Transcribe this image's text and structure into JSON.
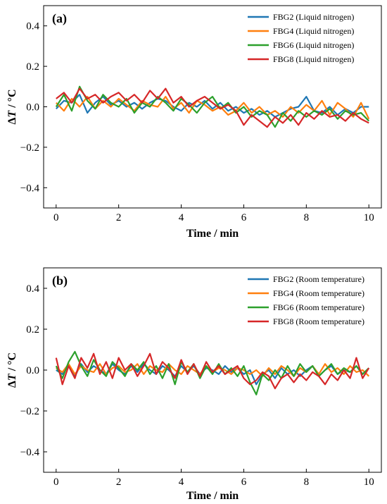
{
  "chart_data": [
    {
      "type": "line",
      "panel_label": "(a)",
      "xlabel": "Time / min",
      "ylabel_delta": "Δ",
      "ylabel_var": "T",
      "ylabel_unit": " / °C",
      "xlim": [
        -0.4,
        10.4
      ],
      "ylim": [
        -0.5,
        0.5
      ],
      "xticks": [
        "0",
        "2",
        "4",
        "6",
        "8",
        "10"
      ],
      "yticks": [
        "0.4",
        "0.2",
        "0.0",
        "−0.2",
        "−0.4"
      ],
      "grid": false,
      "legend_position": "top-right",
      "x": [
        0,
        0.25,
        0.5,
        0.75,
        1,
        1.25,
        1.5,
        1.75,
        2,
        2.25,
        2.5,
        2.75,
        3,
        3.25,
        3.5,
        3.75,
        4,
        4.25,
        4.5,
        4.75,
        5,
        5.25,
        5.5,
        5.75,
        6,
        6.25,
        6.5,
        6.75,
        7,
        7.25,
        7.5,
        7.75,
        8,
        8.25,
        8.5,
        8.75,
        9,
        9.25,
        9.5,
        9.75,
        10
      ],
      "series": [
        {
          "name": "FBG2 (Liquid nitrogen)",
          "color": "#1f77b4",
          "values": [
            -0.01,
            0.03,
            0.02,
            0.06,
            -0.03,
            0.02,
            0.05,
            0.01,
            0.03,
            0.0,
            0.02,
            -0.01,
            0.02,
            0.04,
            0.03,
            0.0,
            -0.02,
            0.02,
            0.0,
            0.03,
            -0.01,
            0.02,
            -0.02,
            0.0,
            -0.03,
            -0.01,
            -0.04,
            -0.02,
            -0.05,
            -0.03,
            -0.01,
            0.0,
            0.05,
            -0.02,
            -0.03,
            0.0,
            -0.04,
            -0.01,
            -0.03,
            0.0,
            0.0
          ]
        },
        {
          "name": "FBG4 (Liquid nitrogen)",
          "color": "#ff7f0e",
          "values": [
            0.02,
            -0.02,
            0.04,
            0.0,
            0.05,
            -0.01,
            0.03,
            0.0,
            0.04,
            0.01,
            -0.02,
            0.03,
            0.01,
            0.0,
            0.05,
            -0.01,
            0.02,
            -0.03,
            0.03,
            0.01,
            -0.02,
            0.0,
            -0.04,
            -0.02,
            0.02,
            -0.03,
            0.0,
            -0.04,
            -0.02,
            -0.05,
            0.0,
            -0.03,
            0.01,
            -0.02,
            0.03,
            -0.04,
            0.02,
            -0.01,
            -0.05,
            0.02,
            -0.06
          ]
        },
        {
          "name": "FBG6 (Liquid nitrogen)",
          "color": "#2ca02c",
          "values": [
            0.0,
            0.06,
            -0.02,
            0.1,
            0.03,
            -0.01,
            0.06,
            0.02,
            0.0,
            0.04,
            -0.03,
            0.02,
            0.0,
            0.05,
            0.02,
            -0.02,
            0.04,
            0.01,
            -0.03,
            0.02,
            0.05,
            -0.01,
            0.02,
            -0.03,
            0.0,
            -0.05,
            -0.02,
            -0.04,
            -0.1,
            -0.03,
            -0.07,
            -0.02,
            -0.05,
            -0.02,
            -0.04,
            -0.01,
            -0.06,
            -0.02,
            -0.04,
            -0.03,
            -0.07
          ]
        },
        {
          "name": "FBG8 (Liquid nitrogen)",
          "color": "#d62728",
          "values": [
            0.04,
            0.07,
            0.02,
            0.09,
            0.04,
            0.06,
            0.02,
            0.05,
            0.07,
            0.03,
            0.06,
            0.02,
            0.08,
            0.04,
            0.09,
            0.02,
            0.05,
            0.0,
            0.03,
            0.05,
            0.02,
            -0.01,
            0.01,
            -0.02,
            -0.09,
            -0.04,
            -0.07,
            -0.1,
            -0.05,
            -0.08,
            -0.04,
            -0.09,
            -0.03,
            -0.06,
            -0.02,
            -0.05,
            -0.04,
            -0.07,
            -0.03,
            -0.06,
            -0.08
          ]
        }
      ]
    },
    {
      "type": "line",
      "panel_label": "(b)",
      "xlabel": "Time / min",
      "ylabel_delta": "Δ",
      "ylabel_var": "T",
      "ylabel_unit": " / °C",
      "xlim": [
        -0.4,
        10.4
      ],
      "ylim": [
        -0.5,
        0.5
      ],
      "xticks": [
        "0",
        "2",
        "4",
        "6",
        "8",
        "10"
      ],
      "yticks": [
        "0.4",
        "0.2",
        "0.0",
        "−0.2",
        "−0.4"
      ],
      "grid": false,
      "legend_position": "top-right",
      "x": [
        0,
        0.2,
        0.4,
        0.6,
        0.8,
        1.0,
        1.2,
        1.4,
        1.6,
        1.8,
        2.0,
        2.2,
        2.4,
        2.6,
        2.8,
        3.0,
        3.2,
        3.4,
        3.6,
        3.8,
        4.0,
        4.2,
        4.4,
        4.6,
        4.8,
        5.0,
        5.2,
        5.4,
        5.6,
        5.8,
        6.0,
        6.2,
        6.4,
        6.6,
        6.8,
        7.0,
        7.2,
        7.4,
        7.6,
        7.8,
        8.0,
        8.2,
        8.4,
        8.6,
        8.8,
        9.0,
        9.2,
        9.4,
        9.6,
        9.8,
        10.0
      ],
      "series": [
        {
          "name": "FBG2 (Room temperature)",
          "color": "#1f77b4",
          "values": [
            0.0,
            -0.02,
            0.02,
            -0.03,
            0.03,
            -0.01,
            0.02,
            0.0,
            -0.02,
            0.03,
            0.0,
            -0.02,
            0.02,
            -0.01,
            0.03,
            0.0,
            -0.02,
            0.02,
            0.0,
            -0.03,
            0.02,
            -0.01,
            0.02,
            -0.02,
            0.01,
            0.0,
            -0.02,
            0.02,
            -0.01,
            0.01,
            -0.02,
            0.0,
            -0.07,
            -0.02,
            0.0,
            -0.04,
            0.01,
            -0.02,
            0.0,
            -0.03,
            0.0,
            0.02,
            -0.03,
            0.0,
            0.02,
            -0.02,
            0.0,
            -0.01,
            0.02,
            -0.02,
            0.01
          ]
        },
        {
          "name": "FBG4 (Room temperature)",
          "color": "#ff7f0e",
          "values": [
            0.01,
            -0.01,
            0.03,
            -0.02,
            0.02,
            0.0,
            -0.01,
            0.03,
            -0.02,
            0.01,
            0.02,
            -0.01,
            0.0,
            0.03,
            -0.02,
            0.02,
            0.0,
            -0.01,
            0.03,
            0.0,
            -0.02,
            0.02,
            0.0,
            -0.02,
            0.02,
            -0.01,
            0.01,
            0.0,
            -0.02,
            0.01,
            0.0,
            -0.02,
            0.0,
            -0.03,
            0.01,
            -0.02,
            0.02,
            0.0,
            -0.03,
            0.01,
            -0.01,
            0.02,
            -0.02,
            0.03,
            -0.01,
            0.01,
            -0.02,
            0.02,
            -0.01,
            0.0,
            -0.03
          ]
        },
        {
          "name": "FBG6 (Room temperature)",
          "color": "#2ca02c",
          "values": [
            0.02,
            -0.04,
            0.04,
            0.09,
            0.02,
            -0.03,
            0.05,
            0.0,
            -0.03,
            0.04,
            0.01,
            -0.03,
            0.03,
            0.0,
            0.04,
            -0.02,
            0.02,
            -0.04,
            0.03,
            -0.07,
            0.04,
            -0.01,
            0.03,
            -0.04,
            0.02,
            -0.02,
            0.03,
            -0.02,
            0.01,
            -0.03,
            0.02,
            -0.06,
            -0.12,
            -0.02,
            -0.05,
            0.0,
            -0.04,
            0.02,
            -0.03,
            0.03,
            -0.01,
            0.02,
            -0.03,
            0.0,
            0.03,
            -0.02,
            0.01,
            -0.01,
            0.02,
            -0.02,
            0.01
          ]
        },
        {
          "name": "FBG8 (Room temperature)",
          "color": "#d62728",
          "values": [
            0.06,
            -0.07,
            0.02,
            -0.04,
            0.06,
            0.01,
            0.08,
            -0.02,
            0.04,
            -0.04,
            0.06,
            0.0,
            0.03,
            -0.03,
            0.02,
            0.08,
            -0.02,
            0.04,
            0.01,
            -0.04,
            0.05,
            -0.02,
            0.03,
            -0.03,
            0.04,
            -0.01,
            0.02,
            -0.02,
            0.0,
            0.02,
            -0.04,
            -0.07,
            -0.05,
            -0.01,
            -0.03,
            -0.09,
            -0.04,
            -0.02,
            -0.06,
            -0.02,
            -0.05,
            -0.01,
            -0.03,
            -0.07,
            -0.02,
            -0.05,
            0.0,
            -0.04,
            0.06,
            -0.04,
            0.01
          ]
        }
      ]
    }
  ]
}
